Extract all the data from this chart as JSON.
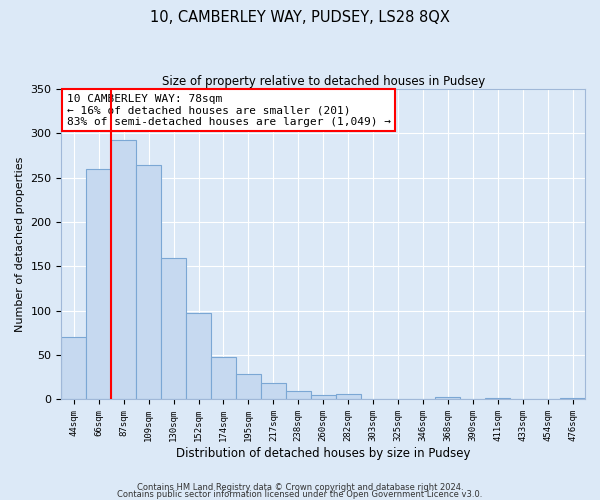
{
  "title": "10, CAMBERLEY WAY, PUDSEY, LS28 8QX",
  "subtitle": "Size of property relative to detached houses in Pudsey",
  "xlabel": "Distribution of detached houses by size in Pudsey",
  "ylabel": "Number of detached properties",
  "bar_labels": [
    "44sqm",
    "66sqm",
    "87sqm",
    "109sqm",
    "130sqm",
    "152sqm",
    "174sqm",
    "195sqm",
    "217sqm",
    "238sqm",
    "260sqm",
    "282sqm",
    "303sqm",
    "325sqm",
    "346sqm",
    "368sqm",
    "390sqm",
    "411sqm",
    "433sqm",
    "454sqm",
    "476sqm"
  ],
  "bar_values": [
    70,
    260,
    293,
    265,
    160,
    97,
    48,
    29,
    19,
    10,
    5,
    6,
    0,
    0,
    0,
    3,
    0,
    2,
    0,
    0,
    2
  ],
  "bar_color": "#c6d9f0",
  "bar_edge_color": "#7ba7d4",
  "grid_color": "#aec6e8",
  "background_color": "#dce9f7",
  "annotation_box_title": "10 CAMBERLEY WAY: 78sqm",
  "annotation_line1": "← 16% of detached houses are smaller (201)",
  "annotation_line2": "83% of semi-detached houses are larger (1,049) →",
  "ylim": [
    0,
    350
  ],
  "yticks": [
    0,
    50,
    100,
    150,
    200,
    250,
    300,
    350
  ],
  "footer_line1": "Contains HM Land Registry data © Crown copyright and database right 2024.",
  "footer_line2": "Contains public sector information licensed under the Open Government Licence v3.0."
}
